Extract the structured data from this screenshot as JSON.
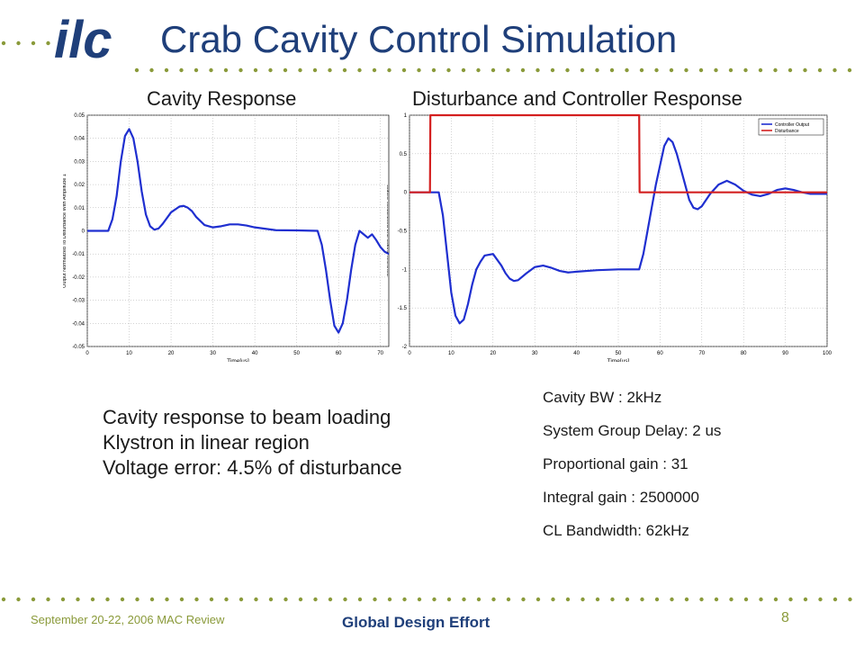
{
  "slide": {
    "logo_text": "ilc",
    "title": "Crab Cavity Control Simulation",
    "left_heading": "Cavity Response",
    "right_heading": "Disturbance and Controller Response",
    "notes": [
      "Cavity response to beam loading",
      "Klystron in linear region",
      "Voltage error: 4.5% of disturbance"
    ],
    "params": [
      "Cavity BW : 2kHz",
      "System Group Delay: 2 us",
      "Proportional gain : 31",
      "Integral gain : 2500000",
      "CL Bandwidth: 62kHz"
    ],
    "footer": {
      "date": "September 20-22, 2006     MAC Review",
      "center": "Global Design Effort",
      "page": "8"
    },
    "colors": {
      "title": "#1f3f7a",
      "dots": "#8a9a3a",
      "series_blue": "#1f2fd0",
      "series_red": "#d42020"
    }
  },
  "chart_data": [
    {
      "type": "line",
      "xlabel": "Time[us]",
      "ylabel": "Output Normalized To Disturbance With Amplitude 1",
      "xlim": [
        0,
        72
      ],
      "ylim": [
        -0.05,
        0.05
      ],
      "xticks": [
        "0",
        "10",
        "20",
        "30",
        "40",
        "50",
        "60",
        "70"
      ],
      "yticks": [
        "0.05",
        "0.04",
        "0.03",
        "0.02",
        "0.01",
        "0",
        "-0.01",
        "-0.02",
        "-0.03",
        "-0.04",
        "-0.05"
      ],
      "grid": true,
      "series": [
        {
          "color": "#1f2fd0",
          "x": [
            0,
            5,
            6,
            7,
            8,
            9,
            10,
            11,
            12,
            13,
            14,
            15,
            16,
            17,
            18,
            20,
            22,
            23,
            24,
            25,
            26,
            28,
            30,
            32,
            34,
            36,
            38,
            40,
            45,
            50,
            55,
            56,
            57,
            58,
            59,
            60,
            61,
            62,
            63,
            64,
            65,
            66,
            67,
            68,
            69,
            70,
            71,
            72
          ],
          "y": [
            0,
            0,
            0.005,
            0.015,
            0.03,
            0.041,
            0.044,
            0.04,
            0.03,
            0.017,
            0.007,
            0.002,
            0.0005,
            0.001,
            0.003,
            0.008,
            0.0105,
            0.0108,
            0.01,
            0.0085,
            0.006,
            0.0025,
            0.0015,
            0.002,
            0.0028,
            0.0028,
            0.0023,
            0.0015,
            0.0003,
            0.0002,
            0,
            -0.006,
            -0.017,
            -0.03,
            -0.041,
            -0.044,
            -0.04,
            -0.03,
            -0.017,
            -0.006,
            0.0,
            -0.0015,
            -0.003,
            -0.0015,
            -0.004,
            -0.007,
            -0.009,
            -0.01
          ]
        }
      ]
    },
    {
      "type": "line",
      "xlabel": "Time[us]",
      "ylabel": "Controller Output and Disturbance Output",
      "xlim": [
        0,
        100
      ],
      "ylim": [
        -2,
        1
      ],
      "xticks": [
        "0",
        "10",
        "20",
        "30",
        "40",
        "50",
        "60",
        "70",
        "80",
        "90",
        "100"
      ],
      "yticks": [
        "1",
        "0.5",
        "0",
        "-0.5",
        "-1",
        "-1.5",
        "-2"
      ],
      "grid": true,
      "legend": {
        "position": "top-right",
        "entries": [
          "Controller Output",
          "Disturbance"
        ]
      },
      "series": [
        {
          "name": "Controller Output",
          "color": "#1f2fd0",
          "x": [
            0,
            5,
            6,
            7,
            8,
            9,
            10,
            11,
            12,
            13,
            14,
            15,
            16,
            17,
            18,
            20,
            22,
            23,
            24,
            25,
            26,
            28,
            30,
            32,
            34,
            36,
            38,
            40,
            45,
            50,
            55,
            56,
            57,
            58,
            59,
            60,
            61,
            62,
            63,
            64,
            65,
            66,
            67,
            68,
            69,
            70,
            71,
            72,
            74,
            76,
            78,
            80,
            82,
            84,
            86,
            88,
            90,
            92,
            94,
            96,
            98,
            100
          ],
          "y": [
            0,
            0,
            0,
            0,
            -0.3,
            -0.8,
            -1.3,
            -1.6,
            -1.7,
            -1.65,
            -1.45,
            -1.2,
            -1.0,
            -0.9,
            -0.82,
            -0.8,
            -0.95,
            -1.05,
            -1.12,
            -1.15,
            -1.14,
            -1.05,
            -0.97,
            -0.95,
            -0.98,
            -1.02,
            -1.04,
            -1.03,
            -1.01,
            -1.0,
            -1.0,
            -0.8,
            -0.5,
            -0.2,
            0.1,
            0.35,
            0.6,
            0.7,
            0.65,
            0.5,
            0.3,
            0.1,
            -0.1,
            -0.2,
            -0.22,
            -0.18,
            -0.1,
            -0.02,
            0.1,
            0.15,
            0.1,
            0.02,
            -0.03,
            -0.05,
            -0.02,
            0.03,
            0.05,
            0.03,
            0.0,
            -0.02,
            -0.02,
            -0.02
          ]
        },
        {
          "name": "Disturbance",
          "color": "#d42020",
          "x": [
            0,
            4.9,
            5,
            55,
            55.1,
            100
          ],
          "y": [
            0,
            0,
            1,
            1,
            0,
            0
          ]
        }
      ]
    }
  ]
}
